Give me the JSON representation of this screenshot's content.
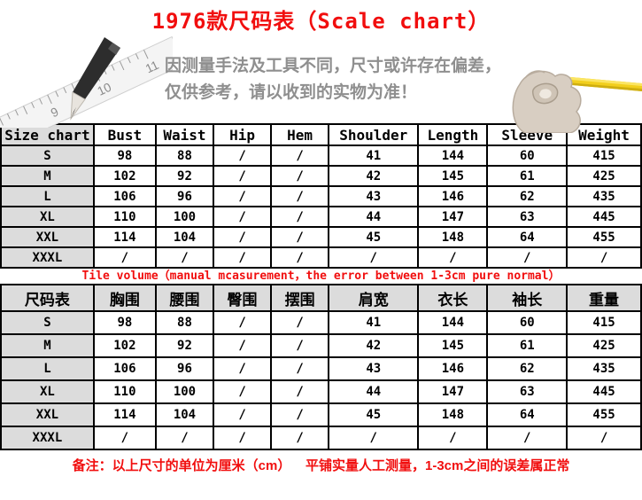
{
  "title": "1976款尺码表（Scale chart）",
  "notice": {
    "line1": "因测量手法及工具不同，尺寸或许存在偏差，",
    "line2": "仅供参考，请以收到的实物为准！"
  },
  "images": {
    "left": "pencil-and-ruler-photo",
    "right": "hand-holding-measuring-tape-photo"
  },
  "table_en": {
    "headers": [
      "Size chart",
      "Bust",
      "Waist",
      "Hip",
      "Hem",
      "Shoulder",
      "Length",
      "Sleeve",
      "Weight"
    ],
    "rows": [
      [
        "S",
        "98",
        "88",
        "/",
        "/",
        "41",
        "144",
        "60",
        "415"
      ],
      [
        "M",
        "102",
        "92",
        "/",
        "/",
        "42",
        "145",
        "61",
        "425"
      ],
      [
        "L",
        "106",
        "96",
        "/",
        "/",
        "43",
        "146",
        "62",
        "435"
      ],
      [
        "XL",
        "110",
        "100",
        "/",
        "/",
        "44",
        "147",
        "63",
        "445"
      ],
      [
        "XXL",
        "114",
        "104",
        "/",
        "/",
        "45",
        "148",
        "64",
        "455"
      ],
      [
        "XXXL",
        "/",
        "/",
        "/",
        "/",
        "/",
        "/",
        "/",
        "/"
      ]
    ]
  },
  "note_between": "Tile volume（manual mcasurement，the error between 1-3cm pure normal）",
  "table_cn": {
    "headers": [
      "尺码表",
      "胸围",
      "腰围",
      "臀围",
      "摆围",
      "肩宽",
      "衣长",
      "袖长",
      "重量"
    ],
    "rows": [
      [
        "S",
        "98",
        "88",
        "/",
        "/",
        "41",
        "144",
        "60",
        "415"
      ],
      [
        "M",
        "102",
        "92",
        "/",
        "/",
        "42",
        "145",
        "61",
        "425"
      ],
      [
        "L",
        "106",
        "96",
        "/",
        "/",
        "43",
        "146",
        "62",
        "435"
      ],
      [
        "XL",
        "110",
        "100",
        "/",
        "/",
        "44",
        "147",
        "63",
        "445"
      ],
      [
        "XXL",
        "114",
        "104",
        "/",
        "/",
        "45",
        "148",
        "64",
        "455"
      ],
      [
        "XXXL",
        "/",
        "/",
        "/",
        "/",
        "/",
        "/",
        "/",
        "/"
      ]
    ]
  },
  "note_bottom": "备注：以上尺寸的单位为厘米（cm）    平铺实量人工测量，1-3cm之间的误差属正常",
  "colors": {
    "accent_red": "#f10e0e",
    "header_gray": "#dcdcdc",
    "notice_text_gray": "#8f8f8f",
    "tape_yellow": "#f2cf1d",
    "border_black": "#000000"
  }
}
